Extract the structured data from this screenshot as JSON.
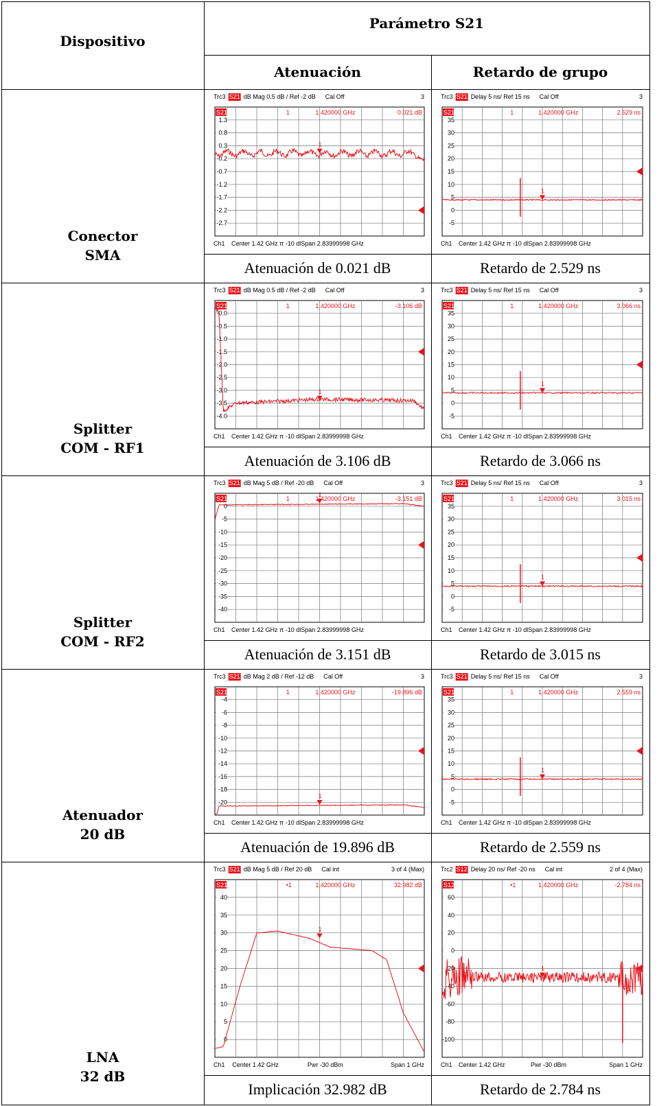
{
  "header": {
    "device": "Dispositivo",
    "parameter": "Parámetro S21",
    "attenuation": "Atenuación",
    "group_delay": "Retardo de grupo"
  },
  "rows": [
    {
      "device": [
        "Conector",
        "SMA"
      ],
      "captions": [
        "Atenuación de 0.021 dB",
        "Retardo de 2.529 ns"
      ],
      "plots": [
        {
          "title": [
            "Trc3",
            "S21",
            "dB Mag 0.5 dB / Ref -2 dB",
            "Cal Off",
            "3"
          ],
          "trace_label": "S21",
          "marker": [
            "1",
            "1.420000 GHz",
            "0.021 dB"
          ],
          "marker_label": "1",
          "yticks": [
            "1.3",
            "0.8",
            "0.3",
            "-0.2",
            "-0.7",
            "-1.2",
            "-1.7",
            "-2.2",
            "-2.7"
          ],
          "footer": [
            "Ch1",
            "Center 1.42 GHz π -10 dlSpan 2.83999998 GHz"
          ]
        },
        {
          "title": [
            "Trc3",
            "S21",
            "Delay 5 ns/ Ref 15 ns",
            "Cal Off",
            "3"
          ],
          "trace_label": "S21",
          "marker": [
            "1",
            "1.420000 GHz",
            "2.529 ns"
          ],
          "marker_label": "1",
          "yticks": [
            "35",
            "30",
            "25",
            "20",
            "15",
            "10",
            "5",
            "0",
            "-5"
          ],
          "footer": [
            "Ch1",
            "Center 1.42 GHz π -10 dlSpan 2.83999998 GHz"
          ]
        }
      ]
    },
    {
      "device": [
        "Splitter",
        "COM - RF1"
      ],
      "captions": [
        "Atenuación de 3.106 dB",
        "Retardo de 3.066 ns"
      ],
      "plots": [
        {
          "title": [
            "Trc3",
            "S21",
            "dB Mag 0.5 dB / Ref -2 dB",
            "Cal Off",
            "3"
          ],
          "trace_label": "S21",
          "marker": [
            "1",
            "1.420000 GHz",
            "-3.106 dB"
          ],
          "marker_label": "1",
          "yticks": [
            "-0.0",
            "-0.5",
            "-1.0",
            "-1.5",
            "-2.0",
            "-2.5",
            "-3.0",
            "-3.5",
            "-4.0"
          ],
          "footer": [
            "Ch1",
            "Center 1.42 GHz π -10 dlSpan 2.83999998 GHz"
          ]
        },
        {
          "title": [
            "Trc3",
            "S21",
            "Delay 5 ns/ Ref 15 ns",
            "Cal Off",
            "3"
          ],
          "trace_label": "S21",
          "marker": [
            "1",
            "1.420000 GHz",
            "3.066 ns"
          ],
          "marker_label": "1",
          "yticks": [
            "35",
            "30",
            "25",
            "20",
            "15",
            "10",
            "5",
            "0",
            "-5"
          ],
          "footer": [
            "Ch1",
            "Center 1.42 GHz π -10 dlSpan 2.83999998 GHz"
          ]
        }
      ]
    },
    {
      "device": [
        "Splitter",
        "COM - RF2"
      ],
      "captions": [
        "Atenuación de 3.151 dB",
        "Retardo de 3.015 ns"
      ],
      "plots": [
        {
          "title": [
            "Trc3",
            "S21",
            "dB Mag 5 dB / Ref -20 dB",
            "Cal Off",
            "3"
          ],
          "trace_label": "S21",
          "marker": [
            "1",
            "1.420000 GHz",
            "-3.151 dB"
          ],
          "marker_label": "1",
          "yticks": [
            "0",
            "-5",
            "-10",
            "-15",
            "-20",
            "-25",
            "-30",
            "-35",
            "-40"
          ],
          "footer": [
            "Ch1",
            "Center 1.42 GHz π -10 dlSpan 2.83999998 GHz"
          ]
        },
        {
          "title": [
            "Trc3",
            "S21",
            "Delay 5 ns/ Ref 15 ns",
            "Cal Off",
            "3"
          ],
          "trace_label": "S21",
          "marker": [
            "1",
            "1.420000 GHz",
            "3.015 ns"
          ],
          "marker_label": "1",
          "yticks": [
            "35",
            "30",
            "25",
            "20",
            "15",
            "10",
            "5",
            "0",
            "-5"
          ],
          "footer": [
            "Ch1",
            "Center 1.42 GHz π -10 dlSpan 2.83999998 GHz"
          ]
        }
      ]
    },
    {
      "device": [
        "Atenuador",
        "20 dB"
      ],
      "captions": [
        "Atenuación de 19.896 dB",
        "Retardo de 2.559 ns"
      ],
      "plots": [
        {
          "title": [
            "Trc3",
            "S21",
            "dB Mag 2 dB / Ref -12 dB",
            "Cal Off",
            "3"
          ],
          "trace_label": "S21",
          "marker": [
            "1",
            "1.420000 GHz",
            "-19.896 dB"
          ],
          "marker_label": "1",
          "yticks": [
            "-4",
            "-6",
            "-8",
            "-10",
            "-12",
            "-14",
            "-16",
            "-18",
            "-20"
          ],
          "footer": [
            "Ch1",
            "Center 1.42 GHz π -10 dlSpan 2.83999998 GHz"
          ]
        },
        {
          "title": [
            "Trc3",
            "S21",
            "Delay 5 ns/ Ref 15 ns",
            "Cal Off",
            "3"
          ],
          "trace_label": "S21",
          "marker": [
            "1",
            "1.420000 GHz",
            "2.559 ns"
          ],
          "marker_label": "1",
          "yticks": [
            "35",
            "30",
            "25",
            "20",
            "15",
            "10",
            "5",
            "0",
            "-5"
          ],
          "footer": [
            "Ch1",
            "Center 1.42 GHz π -10 dlSpan 2.83999998 GHz"
          ]
        }
      ]
    },
    {
      "device": [
        "LNA",
        "32 dB"
      ],
      "captions": [
        "Implicación 32.982 dB",
        "Retardo de 2.784 ns"
      ],
      "plots": [
        {
          "title": [
            "Trc3",
            "S21",
            "dB Mag 5 dB / Ref 20 dB",
            "Cal int",
            "3 of 4 (Max)"
          ],
          "trace_label": "S21",
          "marker": [
            "•1",
            "1.420000 GHz",
            "32.982 dB"
          ],
          "marker_label": "1",
          "yticks": [
            "40",
            "35",
            "30",
            "25",
            "20",
            "15",
            "10",
            "5",
            "0"
          ],
          "footer": [
            "Ch1",
            "Center 1.42 GHz",
            "Pwr -30 dBm",
            "Span 1 GHz"
          ]
        },
        {
          "title": [
            "Trc2",
            "S12",
            "Delay 20 ns/ Ref -20 ns",
            "Cal int",
            "2 of 4 (Max)"
          ],
          "trace_label": "S12",
          "marker": [
            "•1",
            "1.420000 GHz",
            "-2.784 ns"
          ],
          "marker_label": "1",
          "yticks": [
            "60",
            "40",
            "20",
            "0",
            "-20",
            "-40",
            "-60",
            "-80",
            "-100"
          ],
          "footer": [
            "Ch1",
            "Center 1.42 GHz",
            "Pwr -30 dBm",
            "Span 1 GHz"
          ]
        }
      ]
    }
  ]
}
